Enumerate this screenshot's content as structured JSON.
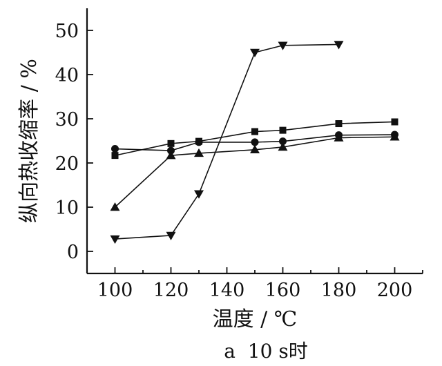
{
  "chart_data": {
    "type": "line",
    "xlabel": "温度 / ℃",
    "ylabel": "纵向热收缩率 / %",
    "caption": "a  10 s时",
    "xlim": [
      90,
      210
    ],
    "ylim": [
      -5,
      55
    ],
    "xticks": [
      100,
      120,
      140,
      160,
      180,
      200
    ],
    "yticks": [
      0,
      10,
      20,
      30,
      40,
      50
    ],
    "grid": false,
    "legend": "none",
    "series": [
      {
        "marker": "square",
        "points": [
          [
            100,
            21.7
          ],
          [
            120,
            24.4
          ],
          [
            130,
            24.9
          ],
          [
            150,
            27.1
          ],
          [
            160,
            27.4
          ],
          [
            180,
            28.9
          ],
          [
            200,
            29.3
          ]
        ]
      },
      {
        "marker": "circle",
        "points": [
          [
            100,
            23.2
          ],
          [
            120,
            22.8
          ],
          [
            130,
            24.7
          ],
          [
            150,
            24.7
          ],
          [
            160,
            24.9
          ],
          [
            180,
            26.3
          ],
          [
            200,
            26.4
          ]
        ]
      },
      {
        "marker": "triangle-up",
        "points": [
          [
            100,
            10.0
          ],
          [
            120,
            21.7
          ],
          [
            130,
            22.2
          ],
          [
            150,
            23.0
          ],
          [
            160,
            23.6
          ],
          [
            180,
            25.7
          ],
          [
            200,
            25.9
          ]
        ]
      },
      {
        "marker": "triangle-down",
        "points": [
          [
            100,
            2.8
          ],
          [
            120,
            3.6
          ],
          [
            130,
            13.0
          ],
          [
            150,
            45.0
          ],
          [
            160,
            46.6
          ],
          [
            180,
            46.8
          ]
        ]
      }
    ]
  }
}
